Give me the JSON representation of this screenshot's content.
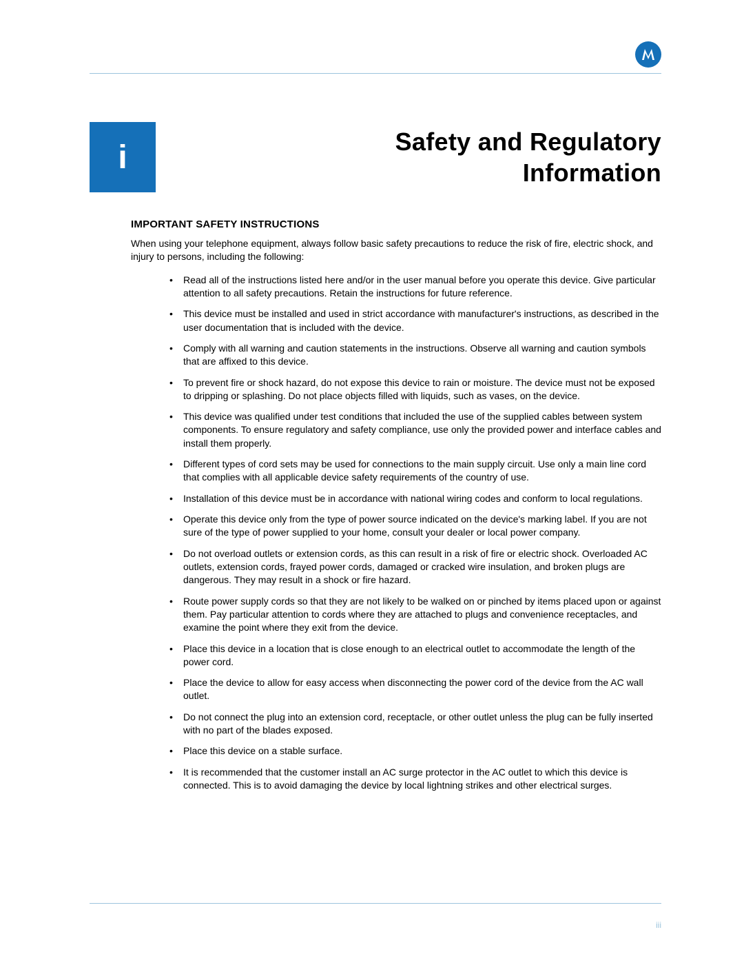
{
  "colors": {
    "brand_blue": "#1570b8",
    "rule_blue": "#9cc4dd",
    "text": "#000000",
    "background": "#ffffff"
  },
  "typography": {
    "body_font": "Arial",
    "title_font": "Arial Black",
    "title_size_pt": 27,
    "chapter_size_pt": 36,
    "heading_size_pt": 11,
    "body_size_pt": 10.5
  },
  "logo": {
    "name": "motorola-logo",
    "shape": "stylized M in circle",
    "fill": "#ffffff",
    "bg": "#1570b8"
  },
  "chapter_tab": "i",
  "title_lines": [
    "Safety and Regulatory",
    "Information"
  ],
  "section_heading": "IMPORTANT SAFETY INSTRUCTIONS",
  "intro": "When using your telephone equipment, always follow basic safety precautions to reduce the risk of fire, electric shock, and injury to persons, including the following:",
  "bullets": [
    "Read all of the instructions listed here and/or in the user manual before you operate this device. Give particular attention to all safety precautions. Retain the instructions for future reference.",
    "This device must be installed and used in strict accordance with manufacturer's instructions, as described in the user documentation that is included with the device.",
    "Comply with all warning and caution statements in the instructions. Observe all warning and caution symbols that are affixed to this device.",
    "To prevent fire or shock hazard, do not expose this device to rain or moisture. The device must not be exposed to dripping or splashing. Do not place objects filled with liquids, such as vases, on the device.",
    "This device was qualified under test conditions that included the use of the supplied cables between system components. To ensure regulatory and safety compliance, use only the provided power and interface cables and install them properly.",
    "Different types of cord sets may be used for connections to the main supply circuit. Use only a main line cord that complies with all applicable device safety requirements of the country of use.",
    "Installation of this device must be in accordance with national wiring codes and conform to local regulations.",
    "Operate this device only from the type of power source indicated on the device's marking label. If you are not sure of the type of power supplied to your home, consult your dealer or local power company.",
    "Do not overload outlets or extension cords, as this can result in a risk of fire or electric shock. Overloaded AC outlets, extension cords, frayed power cords, damaged or cracked wire insulation, and broken plugs are dangerous. They may result in a shock or fire hazard.",
    "Route power supply cords so that they are not likely to be walked on or pinched by items placed upon or against them. Pay particular attention to cords where they are attached to plugs and convenience receptacles, and examine the point where they exit from the device.",
    "Place this device in a location that is close enough to an electrical outlet to accommodate the length of the power cord.",
    "Place the device to allow for easy access when disconnecting the power cord of the device from the AC wall outlet.",
    "Do not connect the plug into an extension cord, receptacle, or other outlet unless the plug can be fully inserted with no part of the blades exposed.",
    "Place this device on a stable surface.",
    "It is recommended that the customer install an AC surge protector in the AC outlet to which this device is connected. This is to avoid damaging the device by local lightning strikes and other electrical surges."
  ],
  "page_number": "iii"
}
